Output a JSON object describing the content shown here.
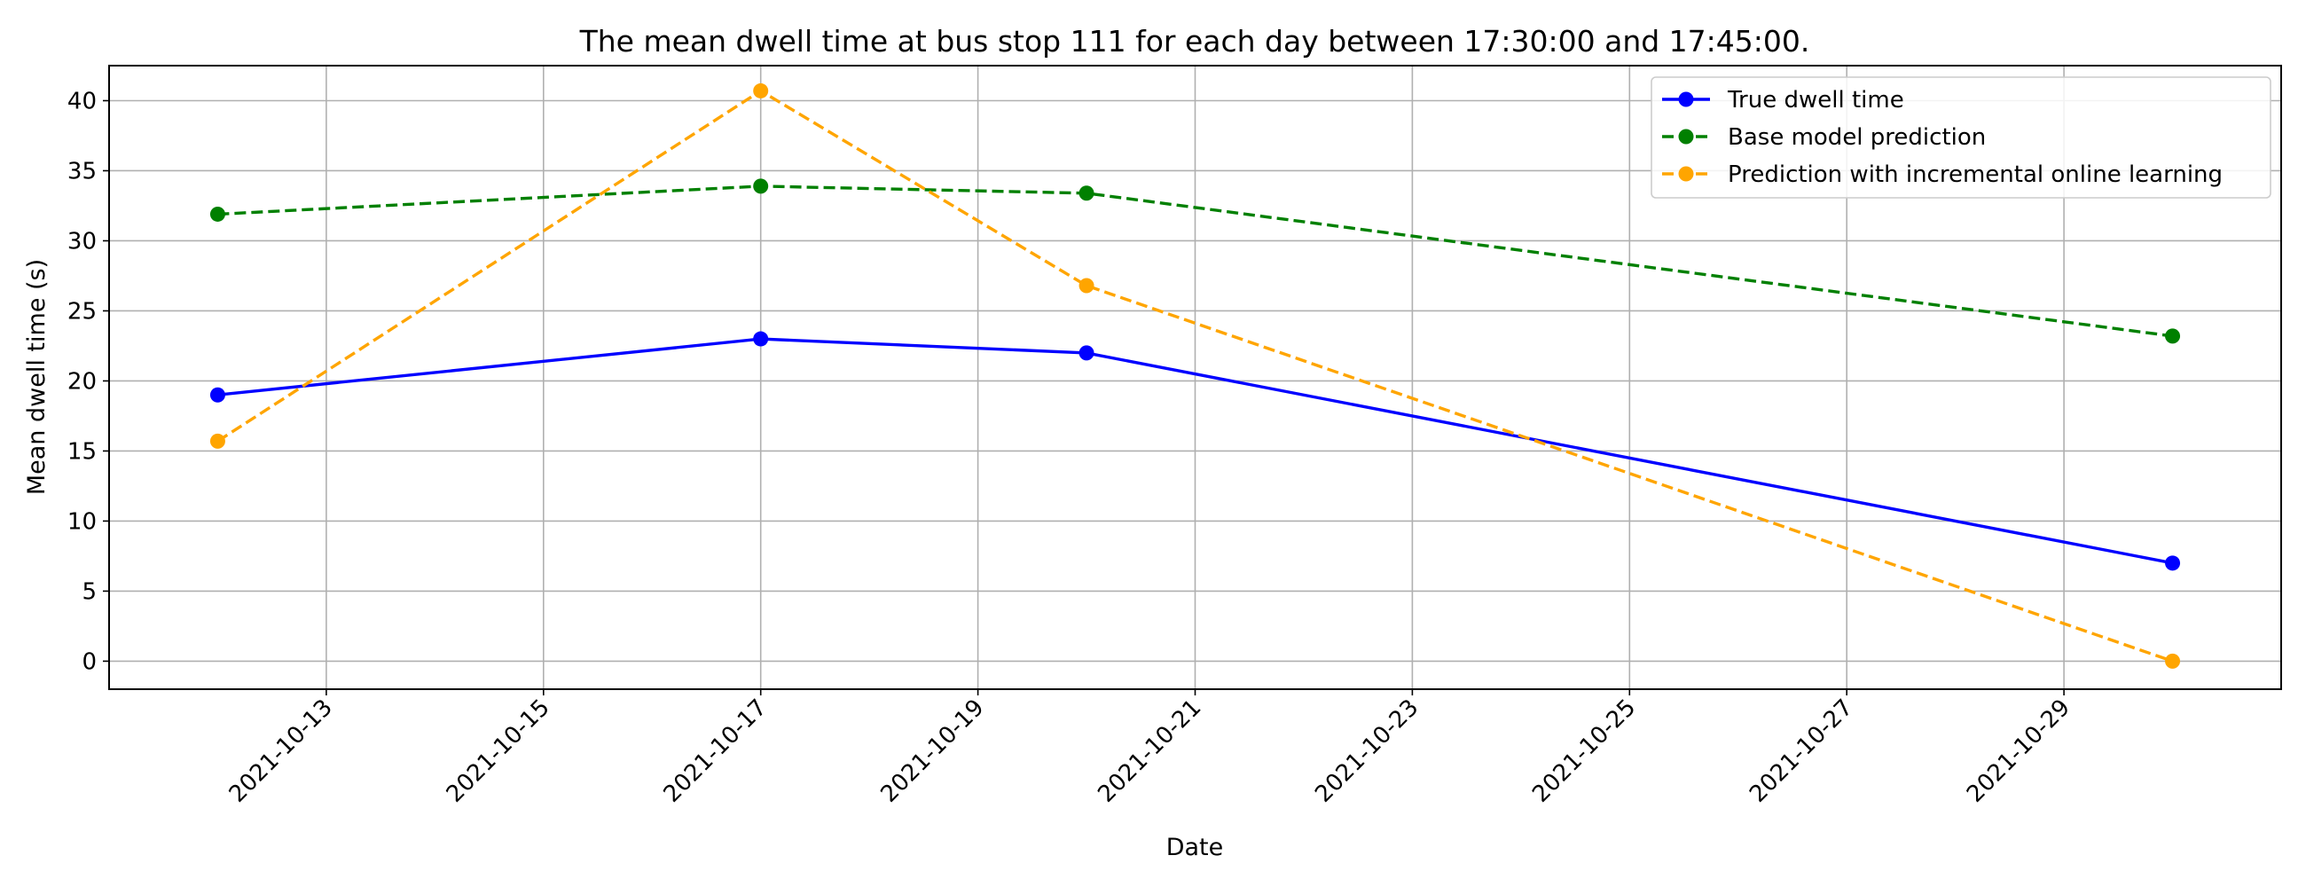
{
  "chart_data": {
    "type": "line",
    "title": "The mean dwell time at bus stop 111 for each day between 17:30:00 and 17:45:00.",
    "xlabel": "Date",
    "ylabel": "Mean dwell time (s)",
    "x": [
      "2021-10-12",
      "2021-10-17",
      "2021-10-20",
      "2021-10-30"
    ],
    "xlim": [
      "2021-10-11",
      "2021-10-31"
    ],
    "ylim": [
      -2,
      42.5
    ],
    "yticks": [
      0,
      5,
      10,
      15,
      20,
      25,
      30,
      35,
      40
    ],
    "xticks": [
      "2021-10-13",
      "2021-10-15",
      "2021-10-17",
      "2021-10-19",
      "2021-10-21",
      "2021-10-23",
      "2021-10-25",
      "2021-10-27",
      "2021-10-29"
    ],
    "grid": true,
    "legend_position": "top-right",
    "series": [
      {
        "name": "True dwell time",
        "values": [
          19.0,
          23.0,
          22.0,
          7.0
        ],
        "color": "#0000ff",
        "style": "solid"
      },
      {
        "name": "Base model prediction",
        "values": [
          31.9,
          33.9,
          33.4,
          23.2
        ],
        "color": "#008000",
        "style": "dashed"
      },
      {
        "name": "Prediction with incremental online learning",
        "values": [
          15.7,
          40.7,
          26.8,
          0.0
        ],
        "color": "#ffa500",
        "style": "dashed"
      }
    ]
  }
}
